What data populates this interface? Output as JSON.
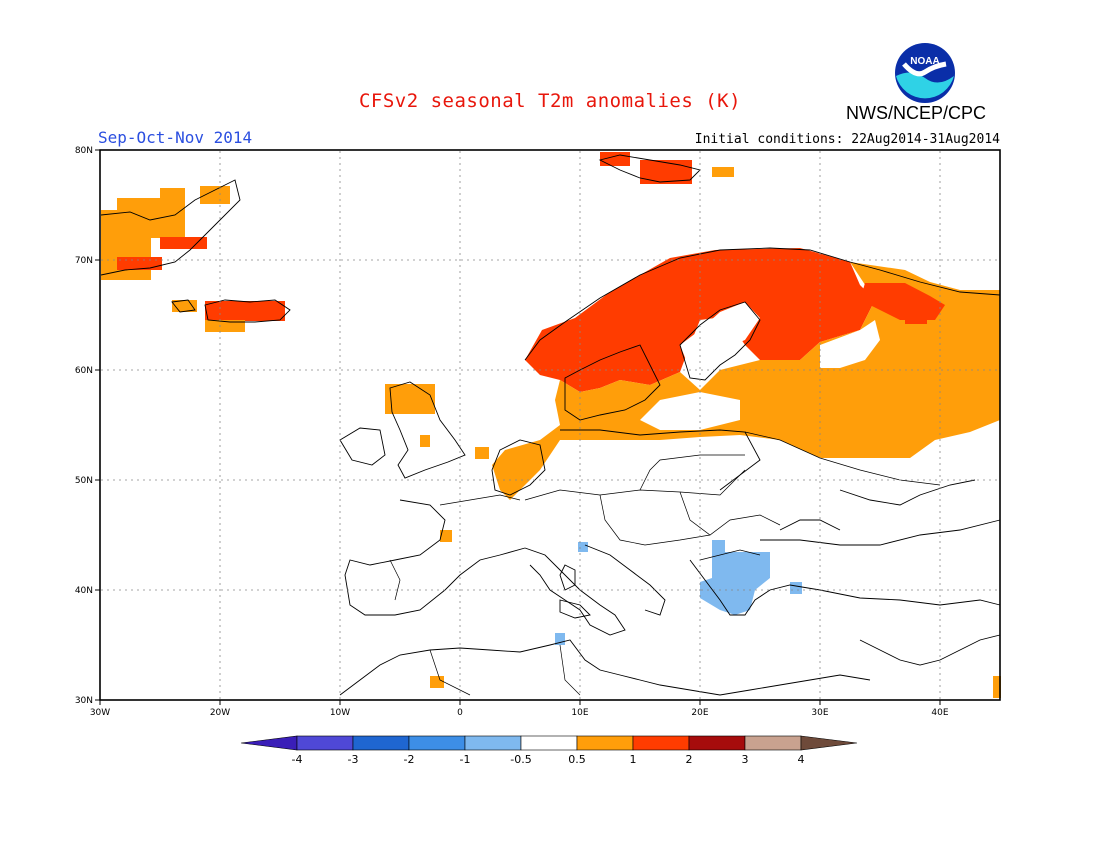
{
  "title": "CFSv2 seasonal T2m anomalies (K)",
  "season": "Sep-Oct-Nov 2014",
  "initial_conditions": "Initial conditions: 22Aug2014-31Aug2014",
  "agency": "NWS/NCEP/CPC",
  "logo": {
    "icon": "noaa-logo-icon",
    "text": "NOAA"
  },
  "map": {
    "lat_range": [
      30,
      80
    ],
    "lon_range": [
      -30,
      45
    ],
    "lat_ticks": [
      "30N",
      "40N",
      "50N",
      "60N",
      "70N",
      "80N"
    ],
    "lon_ticks": [
      "30W",
      "20W",
      "10W",
      "0",
      "10E",
      "20E",
      "30E",
      "40E"
    ],
    "grid": "dotted",
    "anomaly_regions": [
      {
        "region": "Greenland / Iceland",
        "category": "0.5 to 1 and 1 to 2"
      },
      {
        "region": "Scandinavia and northwest Russia",
        "category": "1 to 2"
      },
      {
        "region": "Western Russia, Baltic, Low Countries",
        "category": "0.5 to 1"
      },
      {
        "region": "Balkans / Greece",
        "category": "-1 to -0.5"
      }
    ]
  },
  "colorbar": {
    "labels": [
      "-4",
      "-3",
      "-2",
      "-1",
      "-0.5",
      "0.5",
      "1",
      "2",
      "3",
      "4"
    ],
    "colors": [
      "#3a1eb8",
      "#4f48d6",
      "#1f66d1",
      "#3d8ee6",
      "#7fb9ef",
      "#ffffff",
      "#ff9e0a",
      "#ff3c00",
      "#a60c0c",
      "#c9a28f",
      "#6e4a3a"
    ]
  },
  "colors": {
    "warm_1": "#ff9e0a",
    "warm_2": "#ff3c00",
    "cool_1": "#7fb9ef",
    "title_red": "#e8160b",
    "season_blue": "#2b4fe0"
  }
}
